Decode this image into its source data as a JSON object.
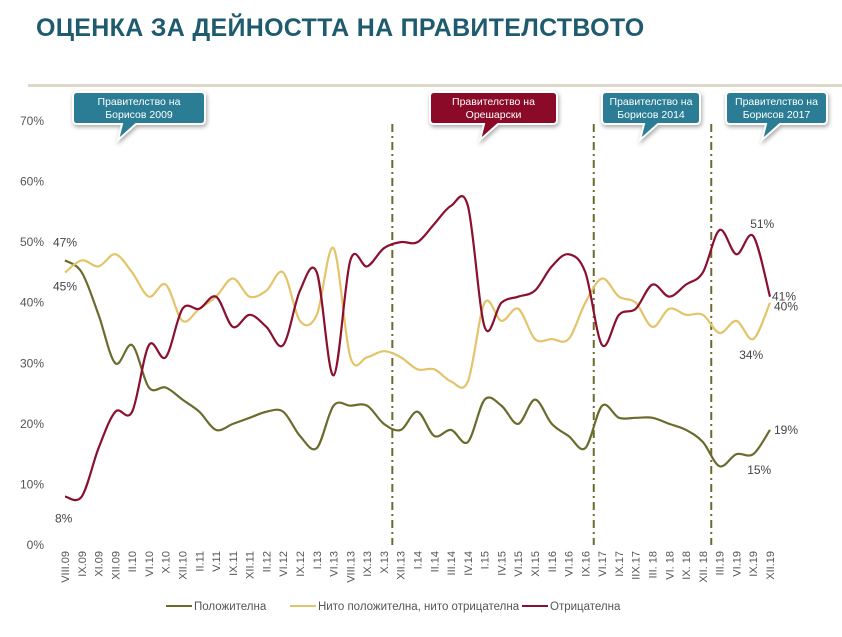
{
  "title": "ОЦЕНКА ЗА ДЕЙНОСТТА НА ПРАВИТЕЛСТВОТО",
  "chart_data": {
    "type": "line",
    "title": "ОЦЕНКА ЗА ДЕЙНОСТТА НА ПРАВИТЕЛСТВОТО",
    "xlabel": "",
    "ylabel": "",
    "ylim": [
      0,
      70
    ],
    "yticks": [
      "0%",
      "10%",
      "20%",
      "30%",
      "40%",
      "50%",
      "60%",
      "70%"
    ],
    "grid": false,
    "legend_position": "bottom",
    "categories": [
      "VIII.09",
      "IX.09",
      "XI.09",
      "XII.09",
      "II.10",
      "VI.10",
      "X.10",
      "XII.10",
      "II.11",
      "V.11",
      "IX.11",
      "XII.11",
      "II.12",
      "VI.12",
      "IX.12",
      "I.13",
      "VI.13",
      "VIII.13",
      "IX.13",
      "X.13",
      "XII.13",
      "I.14",
      "II.14",
      "III.14",
      "IV.14",
      "I.15",
      "IV.15",
      "VI.15",
      "XI.15",
      "II.16",
      "VI.16",
      "IX.16",
      "VI.17",
      "IX.17",
      "IIX.17",
      "III. 18",
      "VI. 18",
      "IX. 18",
      "XII. 18",
      "III.19",
      "VI.19",
      "IX.19",
      "XII.19"
    ],
    "series": [
      {
        "name": "Положителна",
        "color": "#6b6b2e",
        "values": [
          47,
          45,
          38,
          30,
          33,
          26,
          26,
          24,
          22,
          19,
          20,
          21,
          22,
          22,
          18,
          16,
          23,
          23,
          23,
          20,
          19,
          22,
          18,
          19,
          17,
          24,
          23,
          20,
          24,
          20,
          18,
          16,
          23,
          21,
          21,
          21,
          20,
          19,
          17,
          13,
          15,
          15,
          19
        ]
      },
      {
        "name": "Нито положителна,  нито отрицателна",
        "color": "#e3c46a",
        "values": [
          45,
          47,
          46,
          48,
          45,
          41,
          43,
          37,
          39,
          41,
          44,
          41,
          42,
          45,
          37,
          38,
          49,
          31,
          31,
          32,
          31,
          29,
          29,
          27,
          27,
          40,
          37,
          39,
          34,
          34,
          34,
          40,
          44,
          41,
          40,
          36,
          39,
          38,
          38,
          35,
          37,
          34,
          40
        ]
      },
      {
        "name": "Отрицателна",
        "color": "#8b1030",
        "values": [
          8,
          8,
          16,
          22,
          22,
          33,
          31,
          39,
          39,
          41,
          36,
          38,
          36,
          33,
          42,
          45,
          28,
          47,
          46,
          49,
          50,
          50,
          53,
          56,
          56,
          36,
          40,
          41,
          42,
          46,
          48,
          45,
          33,
          38,
          39,
          43,
          41,
          43,
          45,
          52,
          48,
          51,
          41
        ]
      }
    ],
    "annotations": [
      {
        "text": "47%",
        "series": 0,
        "index": 0
      },
      {
        "text": "45%",
        "series": 1,
        "index": 0
      },
      {
        "text": "8%",
        "series": 2,
        "index": 0
      },
      {
        "text": "51%",
        "series": 2,
        "index": 41
      },
      {
        "text": "41%",
        "series": 2,
        "index": 42
      },
      {
        "text": "40%",
        "series": 1,
        "index": 42
      },
      {
        "text": "34%",
        "series": 1,
        "index": 41
      },
      {
        "text": "19%",
        "series": 0,
        "index": 42
      },
      {
        "text": "15%",
        "series": 0,
        "index": 41
      }
    ],
    "government_changes_after_index": [
      19,
      31,
      38
    ],
    "callouts": [
      {
        "line1": "Правителство на",
        "line2": "Борисов 2009",
        "color": "#2a7d95"
      },
      {
        "line1": "Правителство на",
        "line2": "Орешарски",
        "color": "#8b0a28"
      },
      {
        "line1": "Правителство на",
        "line2": "Борисов 2014",
        "color": "#2a7d95"
      },
      {
        "line1": "Правителство на",
        "line2": "Борисов 2017",
        "color": "#2a7d95"
      }
    ]
  }
}
